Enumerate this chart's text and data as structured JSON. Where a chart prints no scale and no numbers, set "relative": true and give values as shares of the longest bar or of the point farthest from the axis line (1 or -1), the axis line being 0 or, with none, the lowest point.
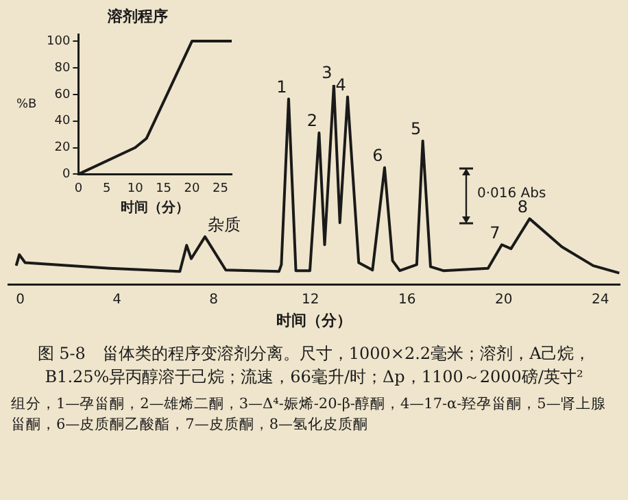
{
  "chart_data": [
    {
      "type": "line",
      "title": "溶剂程序",
      "xlabel": "时间（分）",
      "ylabel": "%B",
      "x": [
        0,
        10,
        12,
        20,
        27
      ],
      "values": [
        0,
        20,
        27,
        100,
        100
      ],
      "color": "#1a1a1a",
      "xlim": [
        0,
        27
      ],
      "ylim": [
        0,
        105
      ],
      "xticks": [
        0,
        5,
        10,
        15,
        20,
        25
      ],
      "yticks": [
        0,
        20,
        40,
        60,
        80,
        100
      ],
      "grid": false
    },
    {
      "type": "line",
      "relative": true,
      "xlabel": "时间（分）",
      "color": "#1a1a1a",
      "xlim": [
        -0.5,
        24.8
      ],
      "xticks": [
        0,
        4,
        8,
        12,
        16,
        20,
        24
      ],
      "grid": false,
      "x": [
        -0.17,
        -0.04,
        0.2,
        3.7,
        6.6,
        6.88,
        7.07,
        7.64,
        8.5,
        10.7,
        10.8,
        11.1,
        11.4,
        11.98,
        12.36,
        12.59,
        12.97,
        13.22,
        13.54,
        14.0,
        14.57,
        15.07,
        15.4,
        15.7,
        16.4,
        16.65,
        16.97,
        17.5,
        19.35,
        19.92,
        20.3,
        21.07,
        22.4,
        23.7,
        24.78
      ],
      "values": [
        0.095,
        0.15,
        0.11,
        0.082,
        0.066,
        0.197,
        0.13,
        0.24,
        0.073,
        0.066,
        0.1,
        0.93,
        0.07,
        0.07,
        0.76,
        0.2,
        1,
        0.31,
        0.94,
        0.11,
        0.073,
        0.586,
        0.12,
        0.07,
        0.1,
        0.72,
        0.09,
        0.07,
        0.082,
        0.2,
        0.18,
        0.33,
        0.19,
        0.095,
        0.058
      ],
      "annotations": [
        {
          "text": "杂质",
          "x": 7.64,
          "y": 0.24
        },
        {
          "text": "1",
          "x": 11.1,
          "y": 0.93
        },
        {
          "text": "2",
          "x": 12.36,
          "y": 0.76
        },
        {
          "text": "3",
          "x": 12.97,
          "y": 1
        },
        {
          "text": "4",
          "x": 13.54,
          "y": 0.94
        },
        {
          "text": "5",
          "x": 16.65,
          "y": 0.72
        },
        {
          "text": "6",
          "x": 15.07,
          "y": 0.586
        },
        {
          "text": "7",
          "x": 19.92,
          "y": 0.2
        },
        {
          "text": "8",
          "x": 21.07,
          "y": 0.33
        },
        "0·016 Abs",
        "图 5-8　甾体类的程序变溶剂分离。尺寸，1000×2.2毫米；溶剂，A己烷，B1.25%异丙醇溶于己烷；流速，66毫升/时；Δp，1100～2000磅/英寸²",
        "组分，1—孕甾酮，2—雄烯二酮，3—Δ⁴-娠烯-20-β-醇酮，4—17-α-羟孕甾酮，5—肾上腺甾酮，6—皮质酮乙酸酯，7—皮质酮，8—氢化皮质酮"
      ]
    }
  ]
}
